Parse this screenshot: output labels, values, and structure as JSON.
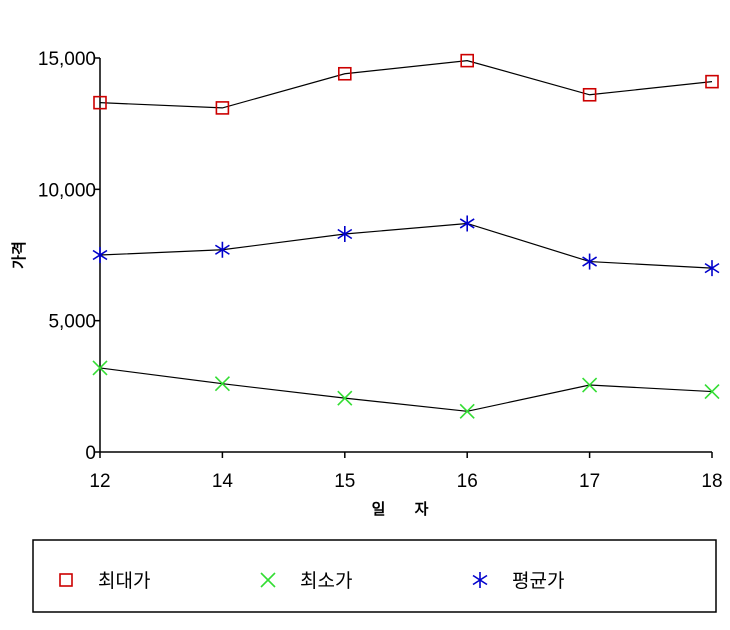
{
  "chart_data": {
    "type": "line",
    "categories": [
      "12",
      "14",
      "15",
      "16",
      "17",
      "18"
    ],
    "xlabel": "일 자",
    "ylabel": "가격",
    "ylim": [
      0,
      15000
    ],
    "yticks": [
      0,
      5000,
      10000,
      15000
    ],
    "ytick_labels": [
      "0",
      "5,000",
      "10,000",
      "15,000"
    ],
    "grid": false,
    "line_color": "#000000",
    "legend_position": "bottom",
    "series": [
      {
        "name": "최대가",
        "values": [
          13300,
          13100,
          14400,
          14900,
          13600,
          14100
        ],
        "color": "#cc0000",
        "marker": "square"
      },
      {
        "name": "최소가",
        "values": [
          3200,
          2600,
          2050,
          1550,
          2550,
          2300
        ],
        "color": "#33dd33",
        "marker": "x"
      },
      {
        "name": "평균가",
        "values": [
          7500,
          7700,
          8300,
          8700,
          7250,
          7000
        ],
        "color": "#0000cc",
        "marker": "asterisk"
      }
    ]
  }
}
